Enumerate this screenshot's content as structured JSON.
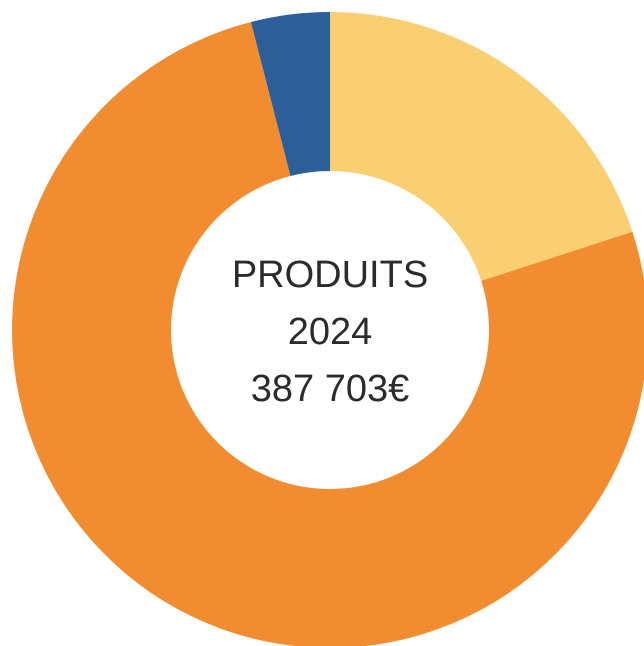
{
  "chart_data": {
    "type": "donut",
    "categories": [
      null,
      null,
      null
    ],
    "values": [
      20,
      76,
      4
    ],
    "colors": [
      "#f9cf72",
      "#f18d30",
      "#2c5f97"
    ],
    "center_text": [
      "PRODUITS",
      "2024",
      "387 703€"
    ]
  }
}
